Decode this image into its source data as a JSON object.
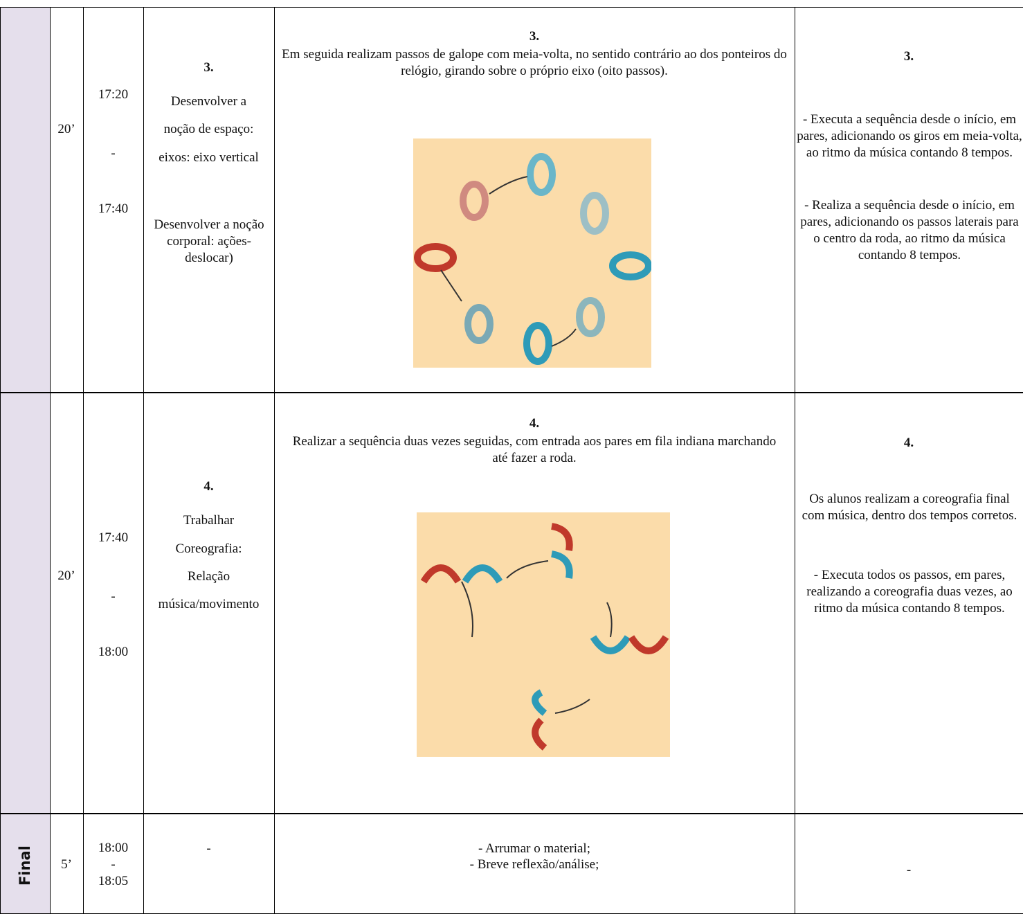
{
  "rows": [
    {
      "phase": null,
      "duration": "20’",
      "time": [
        "17:20",
        "-",
        "17:40"
      ],
      "objective": {
        "number": "3.",
        "lines": [
          "Desenvolver a",
          "noção de espaço:",
          "eixos: eixo vertical"
        ],
        "extra": "Desenvolver a noção corporal: ações-deslocar)"
      },
      "description": {
        "number": "3.",
        "text": "Em seguida realizam passos de galope com meia-volta, no sentido contrário ao dos ponteiros do relógio, girando sobre o próprio eixo (oito passos)."
      },
      "evaluation": {
        "number": "3.",
        "paragraphs": [
          "- Executa a sequência desde o início, em pares, adicionando os giros em meia-volta, ao ritmo da música contando 8 tempos.",
          "- Realiza a sequência desde o início, em pares, adicionando os passos laterais para o centro da roda, ao ritmo da música contando 8 tempos."
        ]
      }
    },
    {
      "phase": null,
      "duration": "20’",
      "time": [
        "17:40",
        "-",
        "18:00"
      ],
      "objective": {
        "number": "4.",
        "lines": [
          "Trabalhar",
          "Coreografia:",
          "Relação",
          "música/movimento"
        ]
      },
      "description": {
        "number": "4.",
        "text": "Realizar a sequência duas vezes seguidas, com entrada aos pares em fila indiana marchando até fazer a roda."
      },
      "evaluation": {
        "number": "4.",
        "paragraphs": [
          "Os alunos realizam a coreografia final com música, dentro dos tempos corretos.",
          "- Executa todos os passos, em pares, realizando a coreografia duas vezes, ao ritmo da música contando 8 tempos."
        ]
      }
    },
    {
      "phase": "Final",
      "duration": "5’",
      "time": [
        "18:00",
        "-",
        "18:05"
      ],
      "objective": {
        "text": "-"
      },
      "description": {
        "lines": [
          "- Arrumar o material;",
          "- Breve reflexão/análise;"
        ]
      },
      "evaluation": {
        "text": "-"
      }
    }
  ]
}
